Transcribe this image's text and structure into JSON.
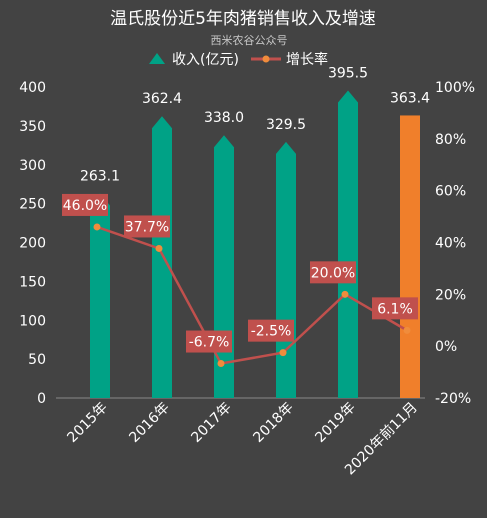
{
  "chart_data": {
    "type": "bar",
    "title": "温氏股份近5年肉猪销售收入及增速",
    "subtitle": "西米农谷公众号",
    "categories": [
      "2015年",
      "2016年",
      "2017年",
      "2018年",
      "2019年",
      "2020年前11月"
    ],
    "series": [
      {
        "name": "收入(亿元)",
        "type": "bar",
        "axis": "left",
        "values": [
          263.1,
          362.4,
          338.0,
          329.5,
          395.5,
          363.4
        ],
        "value_labels": [
          "263.1",
          "362.4",
          "338.0",
          "329.5",
          "395.5",
          "363.4"
        ],
        "color": "#00A286",
        "highlight_color": "#F07F2B"
      },
      {
        "name": "增长率",
        "type": "line",
        "axis": "right",
        "values": [
          46.0,
          37.7,
          -6.7,
          -2.5,
          20.0,
          6.1
        ],
        "value_labels": [
          "46.0%",
          "37.7%",
          "-6.7%",
          "-2.5%",
          "20.0%",
          "6.1%"
        ],
        "color": "#C0504D",
        "marker_color": "#F08C3C"
      }
    ],
    "y_left": {
      "ylim": [
        0,
        400
      ],
      "ticks": [
        "0",
        "50",
        "100",
        "150",
        "200",
        "250",
        "300",
        "350",
        "400"
      ]
    },
    "y_right": {
      "ylim": [
        -20,
        100
      ],
      "ticks": [
        "-20%",
        "0%",
        "20%",
        "40%",
        "60%",
        "80%",
        "100%"
      ]
    },
    "legend_position": "top-center",
    "grid": false,
    "colors": {
      "background": "#434343",
      "text": "#FFFFFF",
      "axis": "#8A8A8A",
      "subtitle": "#C8C8C8"
    }
  }
}
